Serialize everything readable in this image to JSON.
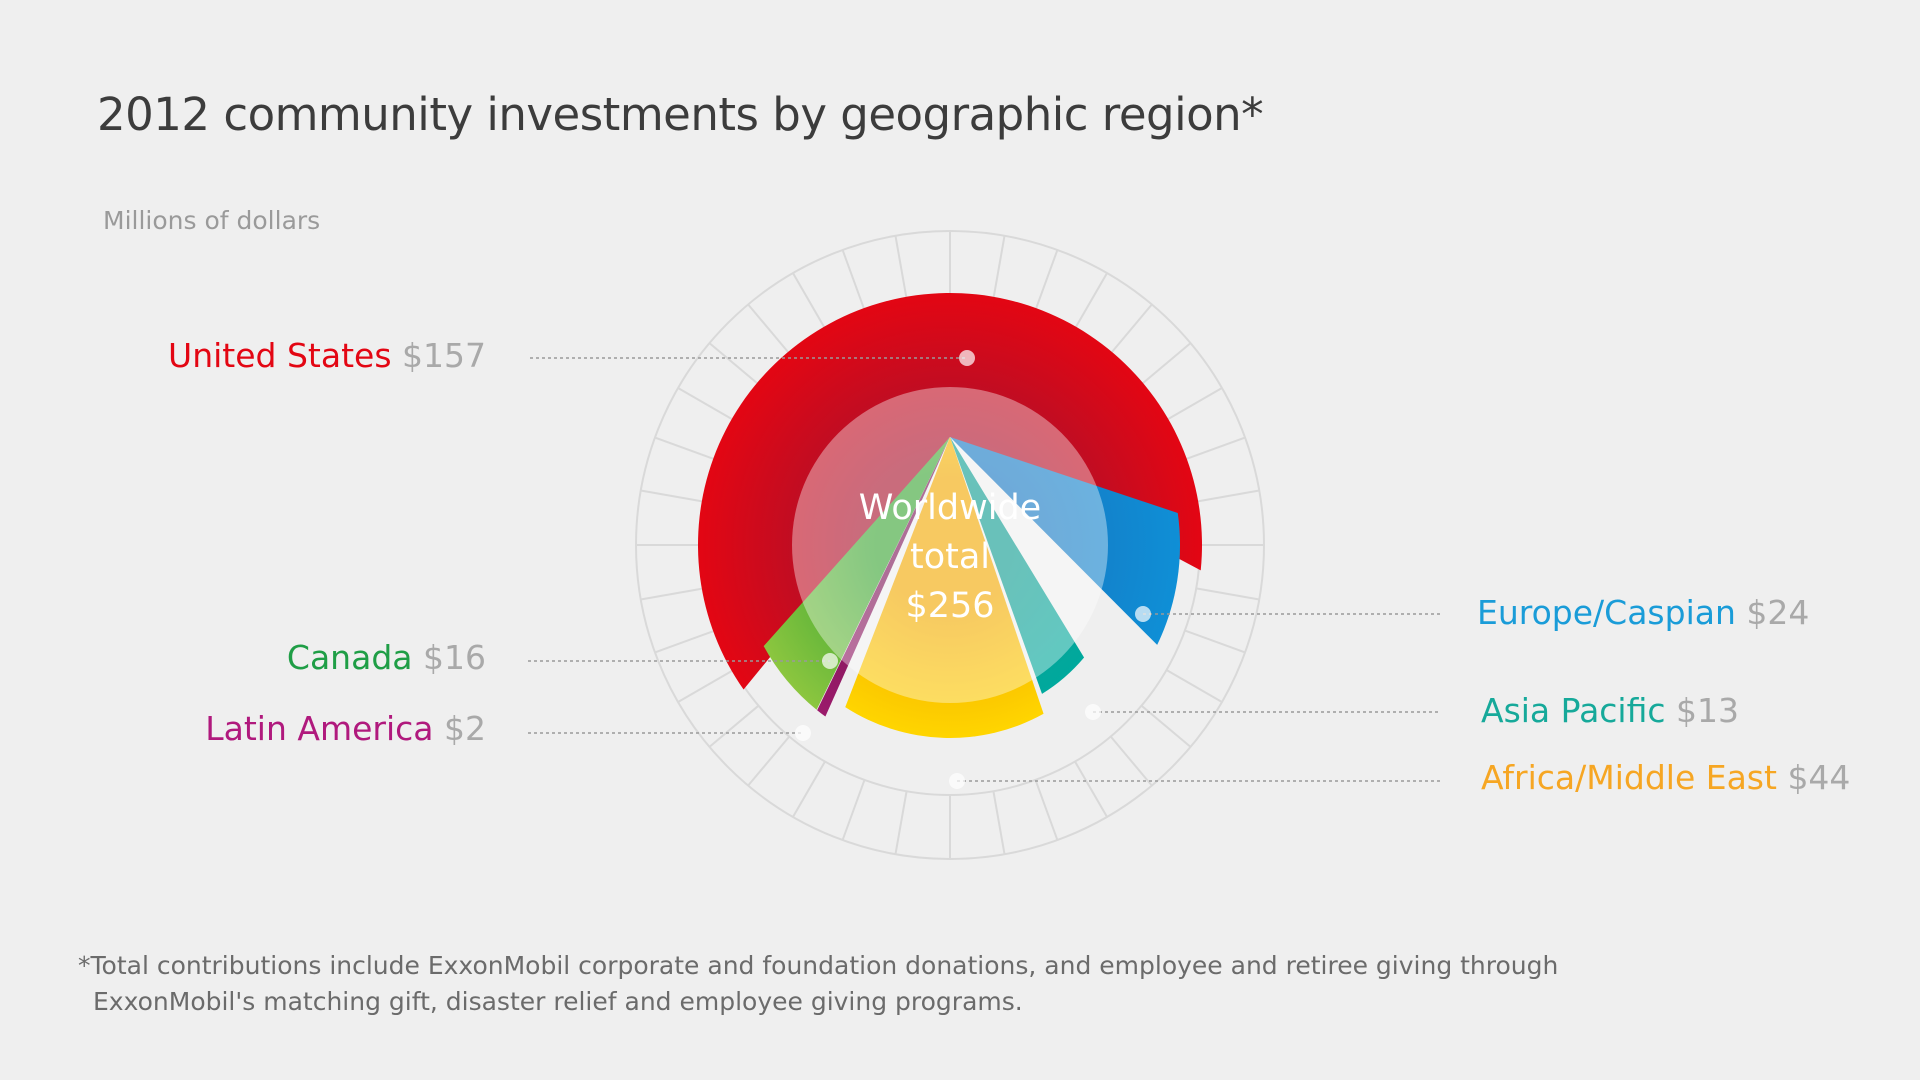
{
  "title": "2012 community investments by geographic region*",
  "subtitle": "Millions of dollars",
  "center": {
    "line1": "Worldwide",
    "line2": "total",
    "value": "$256"
  },
  "footnote": {
    "line1": "*Total contributions include ExxonMobil corporate and foundation donations, and employee and retiree giving through",
    "line2": "ExxonMobil's matching gift, disaster relief and employee giving programs."
  },
  "chart_data": {
    "type": "pie",
    "title": "2012 community investments by geographic region*",
    "unit": "Millions of dollars",
    "total": 256,
    "slices": [
      {
        "label": "United States",
        "value": 157,
        "value_label": "$157",
        "color": "#e30613",
        "color_dark": "#a8122d"
      },
      {
        "label": "Europe/Caspian",
        "value": 24,
        "value_label": "$24",
        "color": "#0f8fd6",
        "color_dark": "#1677c2"
      },
      {
        "label": "Asia Pacific",
        "value": 13,
        "value_label": "$13",
        "color": "#00a99d",
        "color_dark": "#0e9c90"
      },
      {
        "label": "Africa/Middle East",
        "value": 44,
        "value_label": "$44",
        "color": "#ffd500",
        "color_dark": "#f2a900"
      },
      {
        "label": "Latin America",
        "value": 2,
        "value_label": "$2",
        "color": "#9b1b6b",
        "color_dark": "#7d1557"
      },
      {
        "label": "Canada",
        "value": 16,
        "value_label": "$16",
        "color": "#8cc63f",
        "color_dark": "#3aa535"
      }
    ]
  },
  "label_colors": {
    "United States": "#e30613",
    "Europe/Caspian": "#1a9cd8",
    "Asia Pacific": "#16a99a",
    "Africa/Middle East": "#f6a623",
    "Latin America": "#b0197d",
    "Canada": "#1f9e46"
  }
}
